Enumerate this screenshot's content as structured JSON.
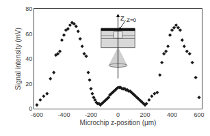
{
  "chart_data": {
    "type": "scatter",
    "x": [
      -600,
      -575,
      -550,
      -525,
      -500,
      -475,
      -460,
      -445,
      -430,
      -415,
      -400,
      -385,
      -370,
      -355,
      -340,
      -325,
      -310,
      -295,
      -280,
      -265,
      -250,
      -235,
      -220,
      -210,
      -200,
      -190,
      -180,
      -170,
      -160,
      -150,
      -140,
      -130,
      -120,
      -110,
      -100,
      -90,
      -80,
      -70,
      -60,
      -50,
      -40,
      -30,
      -20,
      -10,
      0,
      10,
      20,
      30,
      40,
      50,
      60,
      70,
      80,
      90,
      100,
      110,
      120,
      130,
      140,
      150,
      160,
      170,
      180,
      190,
      200,
      210,
      230,
      250,
      270,
      290,
      310,
      325,
      340,
      355,
      370,
      385,
      400,
      415,
      430,
      445,
      460,
      475,
      490,
      510,
      530,
      550,
      575,
      600
    ],
    "values": [
      3,
      7,
      10,
      12,
      24,
      29,
      43,
      44,
      46,
      55,
      59,
      63,
      64,
      67,
      69,
      68,
      66,
      62,
      56,
      50,
      44,
      42,
      29,
      23,
      16,
      12,
      9,
      7,
      5,
      4,
      4,
      3,
      4,
      5,
      6,
      7,
      8,
      9,
      11,
      12,
      13,
      14,
      15,
      16,
      17,
      17,
      17,
      16,
      16,
      16,
      15,
      15,
      14,
      14,
      13,
      12,
      11,
      10,
      9,
      8,
      7,
      6,
      5,
      4,
      3,
      4,
      7,
      10,
      12,
      13,
      27,
      37,
      44,
      46,
      50,
      59,
      63,
      65,
      67,
      65,
      63,
      55,
      50,
      46,
      44,
      37,
      25,
      9
    ],
    "xlabel": "Microchip z-position (μm)",
    "ylabel": "Signal intensity (mV)",
    "xlim": [
      -620,
      620
    ],
    "ylim": [
      0,
      80
    ],
    "xticks": [
      -600,
      -400,
      -200,
      0,
      200,
      400,
      600
    ],
    "yticks": [
      0,
      20,
      40,
      60,
      80
    ],
    "color": "#1a1a1a",
    "marker": "diamond",
    "grid": false,
    "annotations": [
      "Z",
      "Z=0"
    ]
  }
}
